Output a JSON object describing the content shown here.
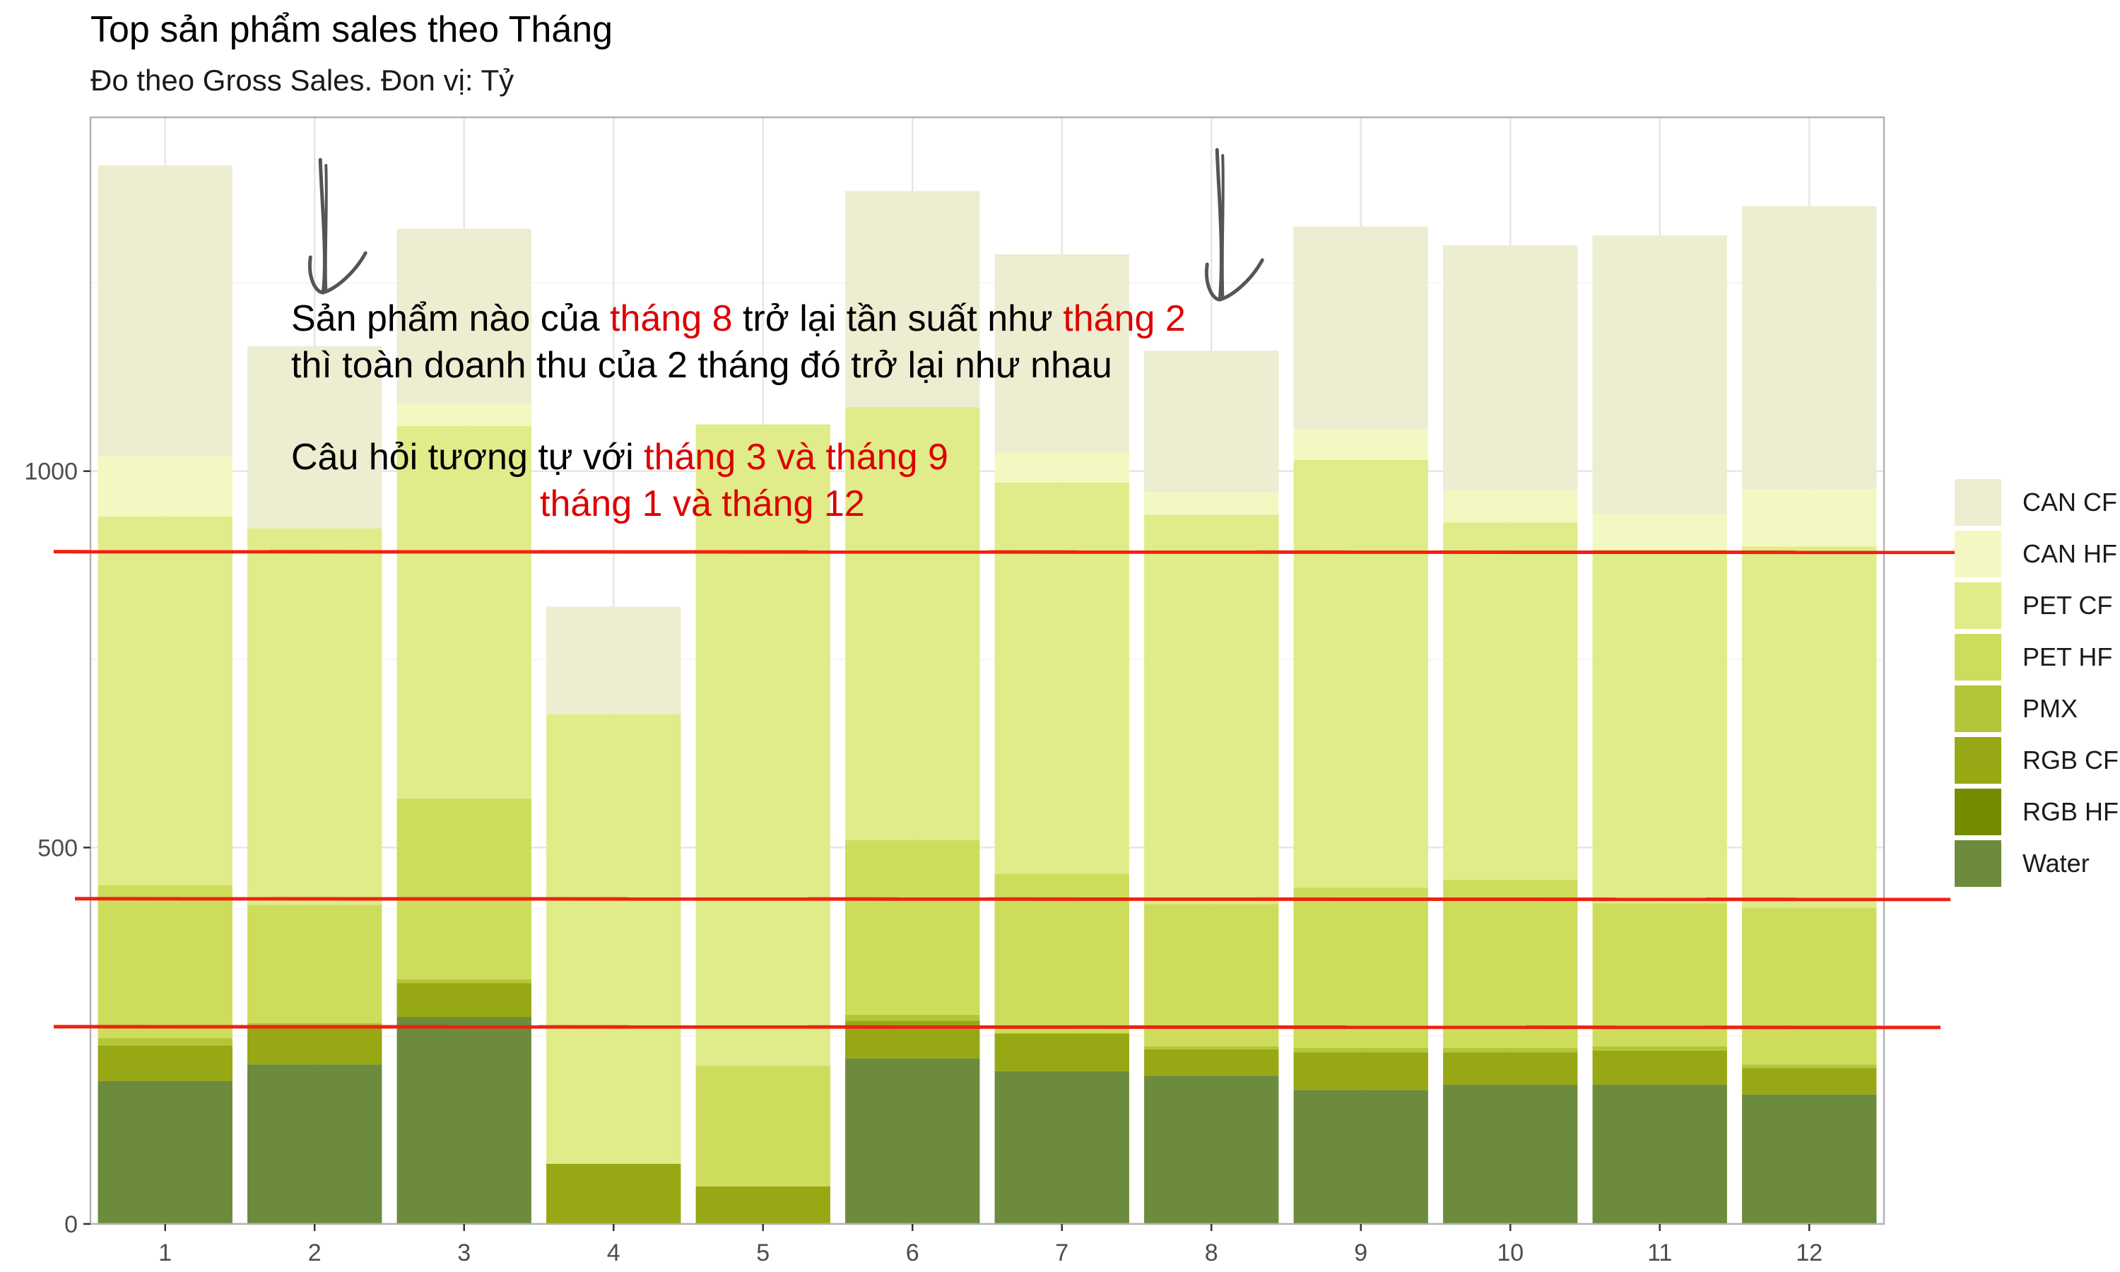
{
  "chart_data": {
    "type": "bar",
    "stacked": true,
    "title": "Top sản phẩm sales theo Tháng",
    "subtitle": "Đo theo Gross Sales. Đon vị: Tỷ",
    "xlabel": "",
    "ylabel": "",
    "ylim": [
      0,
      1470
    ],
    "y_ticks": [
      0,
      500,
      1000
    ],
    "grid": true,
    "legend_position": "right",
    "categories": [
      "1",
      "2",
      "3",
      "4",
      "5",
      "6",
      "7",
      "8",
      "9",
      "10",
      "11",
      "12"
    ],
    "series": [
      {
        "name": "Water",
        "color": "#6d8b3d",
        "values": [
          190,
          212,
          275,
          0,
          0,
          220,
          203,
          197,
          178,
          185,
          185,
          172
        ]
      },
      {
        "name": "RGB HF",
        "color": "#778b00",
        "values": [
          0,
          0,
          0,
          0,
          0,
          0,
          0,
          0,
          0,
          0,
          0,
          0
        ]
      },
      {
        "name": "RGB CF",
        "color": "#97a814",
        "values": [
          47,
          50,
          45,
          80,
          50,
          50,
          50,
          35,
          50,
          43,
          45,
          35
        ]
      },
      {
        "name": "PMX",
        "color": "#b4c637",
        "values": [
          10,
          5,
          5,
          0,
          0,
          8,
          0,
          4,
          6,
          6,
          6,
          5
        ]
      },
      {
        "name": "PET HF",
        "color": "#cddd5b",
        "values": [
          203,
          157,
          240,
          0,
          160,
          232,
          212,
          189,
          213,
          223,
          190,
          208
        ]
      },
      {
        "name": "PET CF",
        "color": "#e0eb8a",
        "values": [
          490,
          500,
          495,
          597,
          852,
          575,
          520,
          517,
          568,
          475,
          470,
          480
        ]
      },
      {
        "name": "CAN HF",
        "color": "#f3f8c3",
        "values": [
          80,
          0,
          30,
          0,
          0,
          0,
          40,
          30,
          40,
          43,
          47,
          76
        ]
      },
      {
        "name": "CAN CF",
        "color": "#ecedd1",
        "values": [
          386,
          242,
          232,
          143,
          0,
          287,
          263,
          188,
          270,
          325,
          370,
          376
        ]
      }
    ],
    "annotations": [
      {
        "text_parts": [
          {
            "text": "Sản phẩm nào của ",
            "highlight": false
          },
          {
            "text": "tháng 8",
            "highlight": true
          },
          {
            "text": " trở lại tần suất như ",
            "highlight": false
          },
          {
            "text": "tháng 2",
            "highlight": true
          }
        ]
      },
      {
        "text_parts": [
          {
            "text": "thì toàn doanh thu của 2 tháng đó trở lại như nhau",
            "highlight": false
          }
        ]
      },
      {
        "text_parts": [
          {
            "text": "Câu hỏi tương tự với ",
            "highlight": false
          },
          {
            "text": "tháng 3 và tháng 9",
            "highlight": true
          }
        ]
      },
      {
        "text_parts": [
          {
            "text": "tháng 1 và tháng 12",
            "highlight": true
          }
        ]
      }
    ],
    "reference_lines": [
      {
        "y": 893,
        "color": "#ee2211"
      },
      {
        "y": 432,
        "color": "#ee2211"
      },
      {
        "y": 262,
        "color": "#ee2211"
      }
    ],
    "arrows_at_categories": [
      "2",
      "8"
    ],
    "colors": {
      "panel_border": "#b3b3b3",
      "grid_major": "#e6e6e6",
      "grid_minor": "#f2f2f2",
      "annotation_text": "#000000",
      "annotation_highlight": "#dd0000",
      "arrow": "#555555"
    }
  }
}
